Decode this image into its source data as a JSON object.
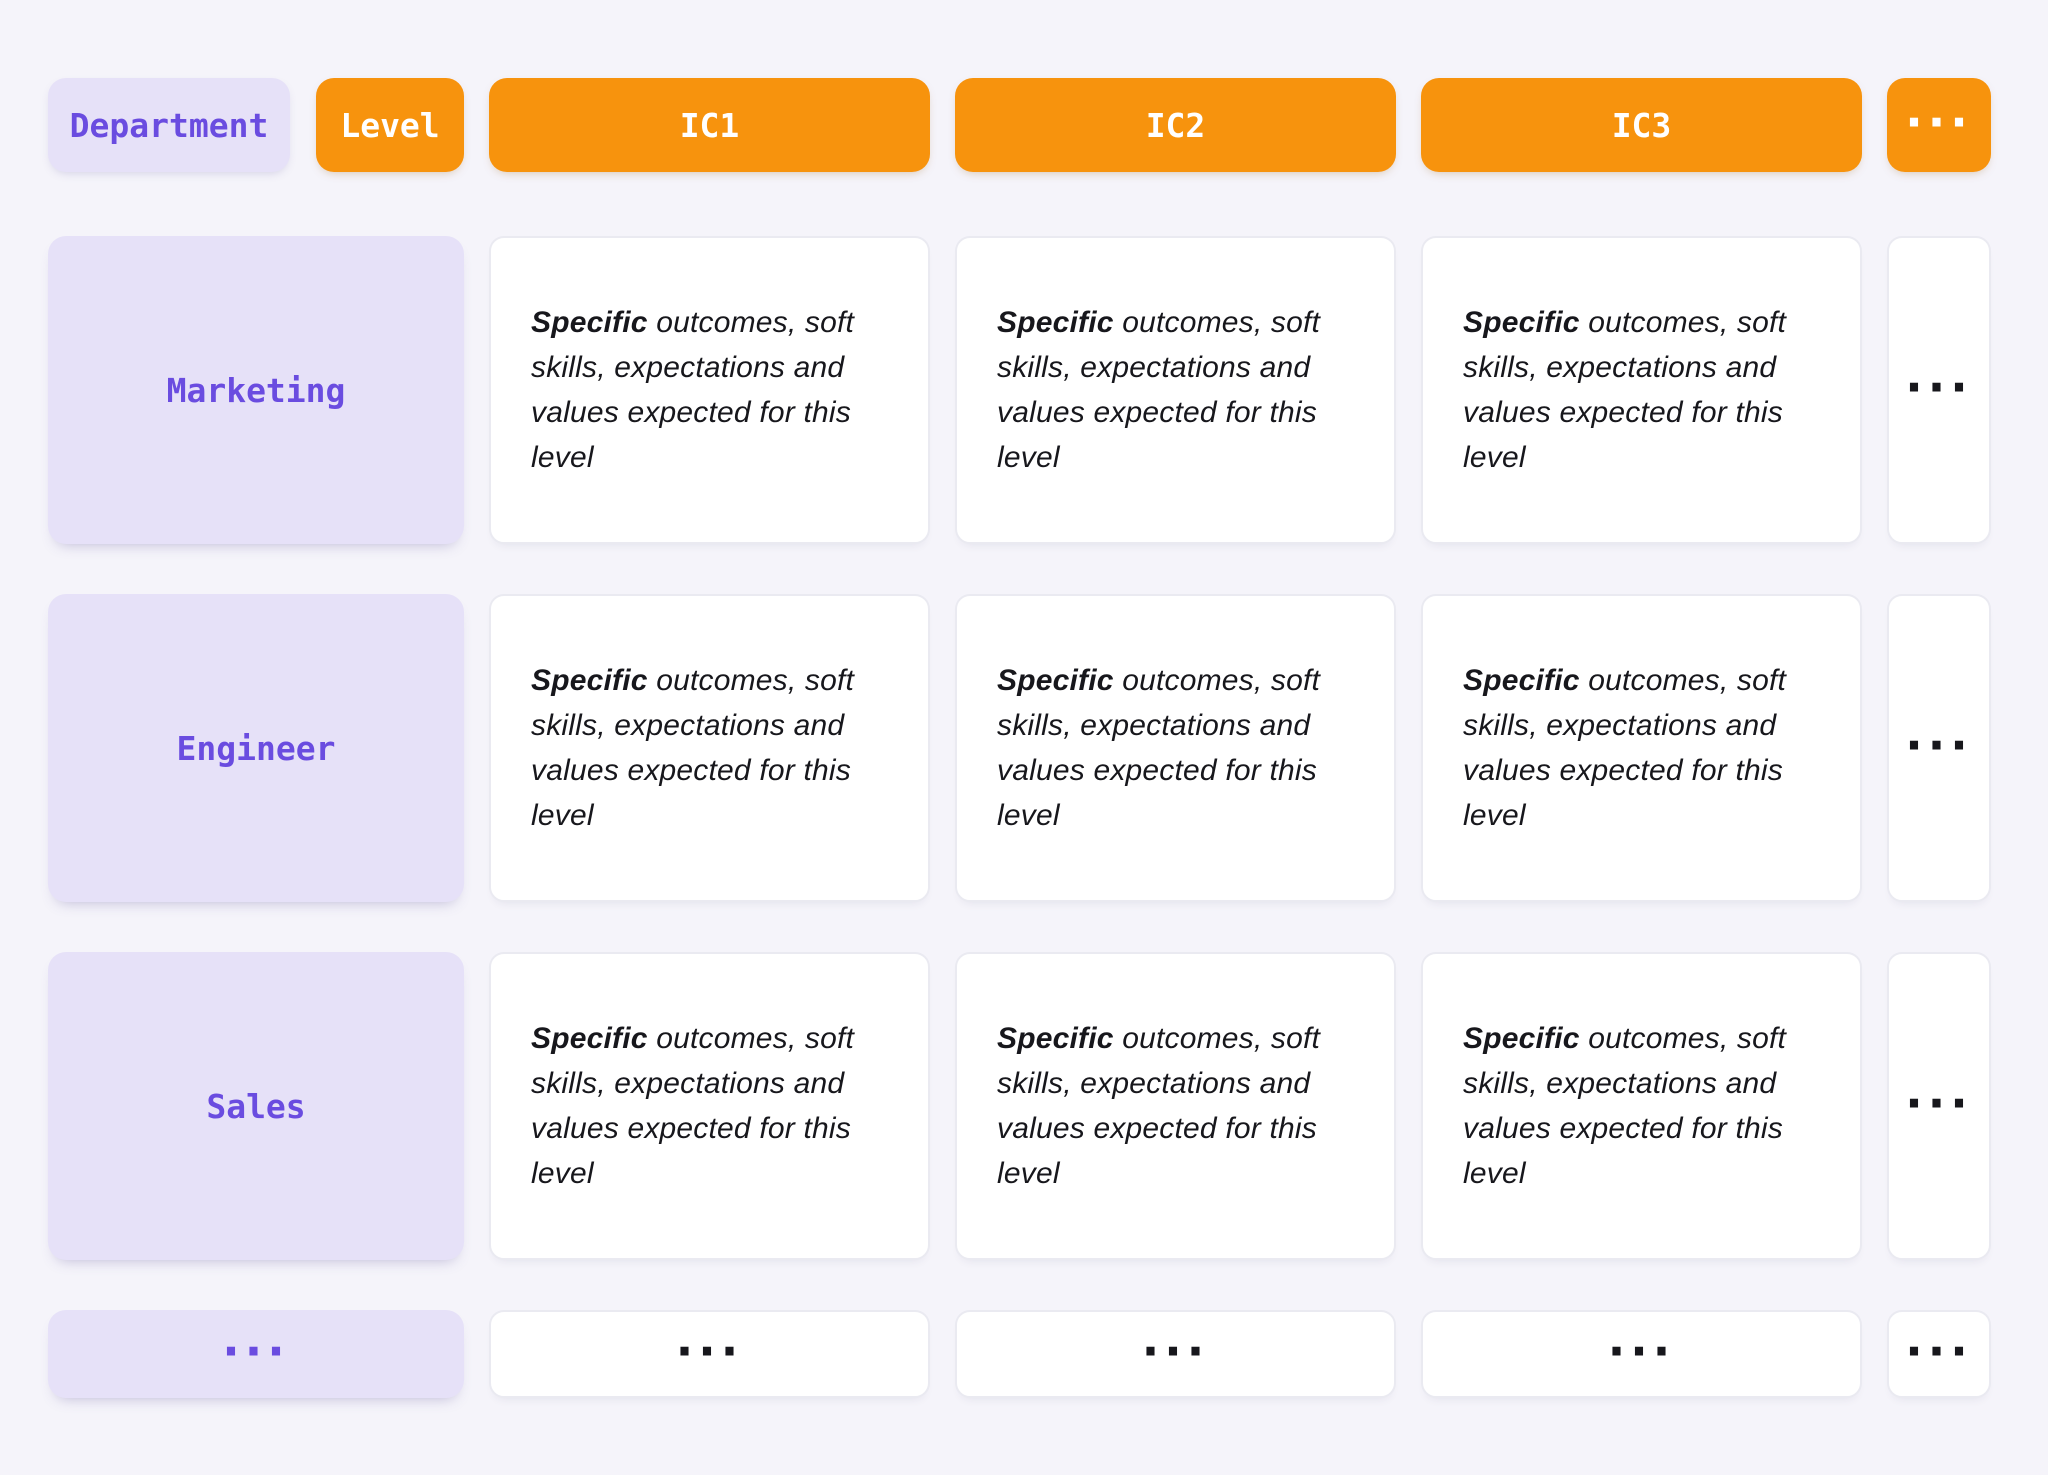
{
  "colors": {
    "bg": "#F5F4FA",
    "lavender": "#E6E1F8",
    "purple": "#6A4CE0",
    "orange": "#F7930D",
    "card": "#FFFFFF",
    "card_border": "#EAEAF1",
    "text_dark": "#17171C"
  },
  "header": {
    "department_label": "Department",
    "level_label": "Level",
    "level_columns": [
      "IC1",
      "IC2",
      "IC3"
    ],
    "more_label": "..."
  },
  "rows": [
    {
      "label": "Marketing"
    },
    {
      "label": "Engineer"
    },
    {
      "label": "Sales"
    },
    {
      "label": "..."
    }
  ],
  "cell": {
    "bold": "Specific",
    "rest": " outcomes, soft skills, expectations and values expected for this level"
  },
  "more_cell_label": "..."
}
